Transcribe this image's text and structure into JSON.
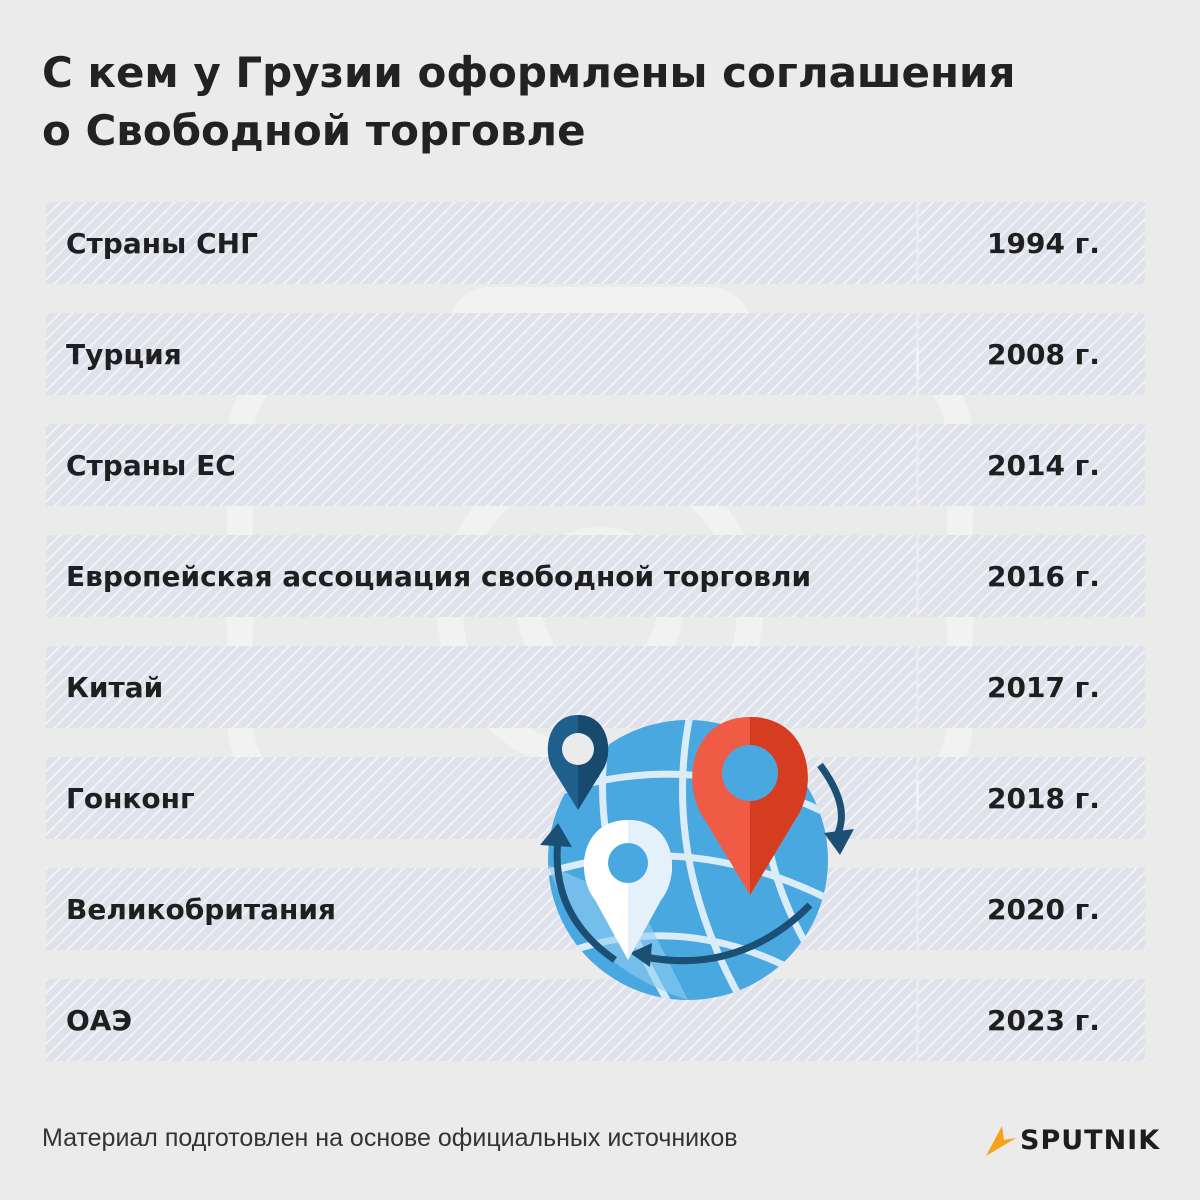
{
  "title": {
    "line1": "С кем у Грузии оформлены соглашения",
    "line2": "о Свободной торговле"
  },
  "agreements": [
    {
      "name": "Страны СНГ",
      "year": "1994 г."
    },
    {
      "name": "Турция",
      "year": "2008 г."
    },
    {
      "name": "Страны ЕС",
      "year": "2014 г."
    },
    {
      "name": "Европейская ассоциация свободной торговли",
      "year": "2016 г."
    },
    {
      "name": "Китай",
      "year": "2017 г."
    },
    {
      "name": "Гонконг",
      "year": "2018 г."
    },
    {
      "name": "Великобритания",
      "year": "2020 г."
    },
    {
      "name": "ОАЭ",
      "year": "2023 г."
    }
  ],
  "illustration": {
    "icon": "globe-with-location-pins-icon",
    "colors": {
      "globe": "#4aa3dd",
      "pin_dark": "#1f5f8b",
      "pin_red": "#e8452c",
      "pin_white": "#ffffff"
    }
  },
  "footer": {
    "source_note": "Материал подготовлен на основе официальных источников"
  },
  "logo": {
    "brand": "SPUTNIK",
    "icon": "sputnik-logo-icon",
    "accent": "#f7a21b"
  }
}
